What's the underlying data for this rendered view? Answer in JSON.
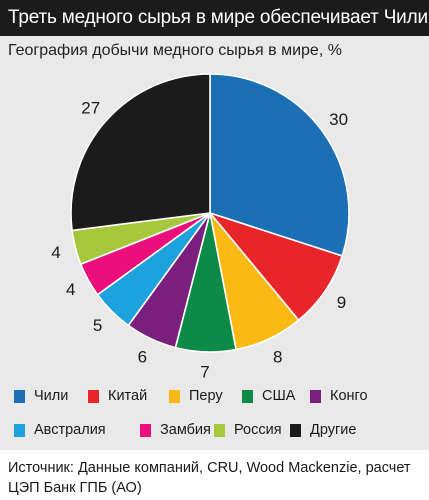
{
  "header": {
    "title": "Треть медного сырья в мире обеспечивает Чили"
  },
  "chart_data": {
    "type": "pie",
    "subtitle": "География добычи медного сырья в мире, %",
    "start_angle_deg": 0,
    "direction": "clockwise",
    "slices": [
      {
        "label": "Чили",
        "value": 30,
        "color": "#1a6fb5"
      },
      {
        "label": "Китай",
        "value": 9,
        "color": "#e8262a"
      },
      {
        "label": "Перу",
        "value": 8,
        "color": "#fbb913"
      },
      {
        "label": "США",
        "value": 7,
        "color": "#0d8a46"
      },
      {
        "label": "Конго",
        "value": 6,
        "color": "#7a1f7e"
      },
      {
        "label": "Австралия",
        "value": 5,
        "color": "#1ea2dd"
      },
      {
        "label": "Замбия",
        "value": 4,
        "color": "#ea0f7a"
      },
      {
        "label": "Россия",
        "value": 4,
        "color": "#a4c73c"
      },
      {
        "label": "Другие",
        "value": 27,
        "color": "#1c1b1c"
      }
    ],
    "legend_position": "bottom"
  },
  "source": {
    "text": "Источник: Данные компаний, CRU, Wood Mackenzie, расчет ЦЭП Банк ГПБ (АО)"
  }
}
